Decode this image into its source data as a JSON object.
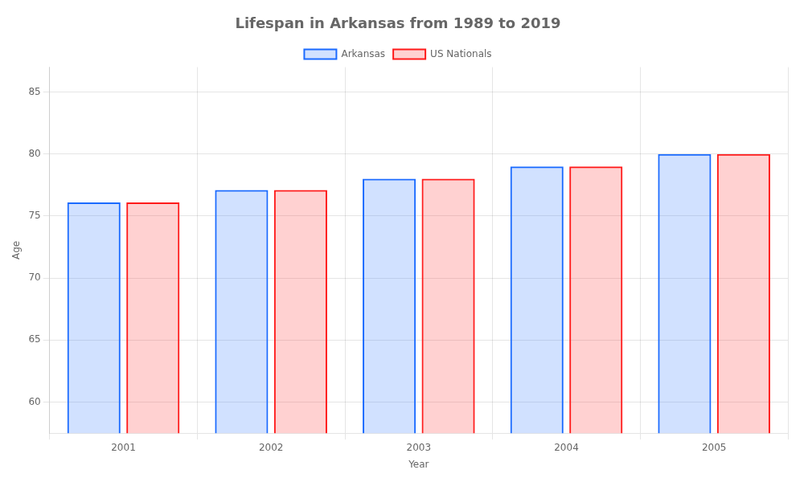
{
  "chart_data": {
    "type": "bar",
    "title": "Lifespan in Arkansas from 1989 to 2019",
    "x_label": "Year",
    "y_label": "Age",
    "categories": [
      "2001",
      "2002",
      "2003",
      "2004",
      "2005"
    ],
    "series": [
      {
        "name": "Arkansas",
        "color": "#1a6aff",
        "values": [
          76.1,
          77.1,
          78.0,
          79.0,
          80.0
        ]
      },
      {
        "name": "US Nationals",
        "color": "#ff1a1a",
        "values": [
          76.1,
          77.1,
          78.0,
          79.0,
          80.0
        ]
      }
    ],
    "ylim": [
      57.5,
      87
    ],
    "yticks": [
      60,
      65,
      70,
      75,
      80,
      85
    ],
    "grid": true,
    "legend": "top"
  }
}
